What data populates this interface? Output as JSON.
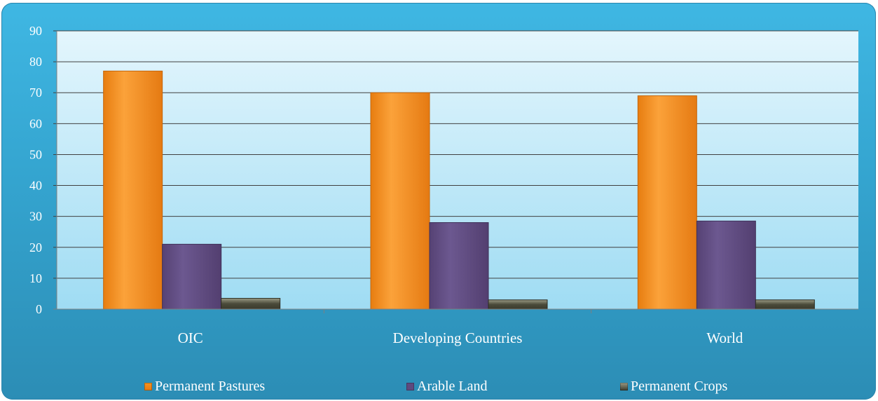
{
  "chart_data": {
    "type": "bar",
    "title": "",
    "xlabel": "",
    "ylabel": "",
    "categories": [
      "OIC",
      "Developing Countries",
      "World"
    ],
    "series": [
      {
        "name": "Permanent Pastures",
        "values": [
          77,
          70,
          69
        ],
        "color": "#f7931e"
      },
      {
        "name": "Arable Land",
        "values": [
          21,
          28,
          28.5
        ],
        "color": "#5e4a7e"
      },
      {
        "name": "Permanent Crops",
        "values": [
          3.5,
          3,
          3
        ],
        "color": "#4a4a3a"
      }
    ],
    "ylim": [
      0,
      90
    ],
    "yticks": [
      0,
      10,
      20,
      30,
      40,
      50,
      60,
      70,
      80,
      90
    ],
    "grid": true,
    "legend_position": "bottom"
  }
}
